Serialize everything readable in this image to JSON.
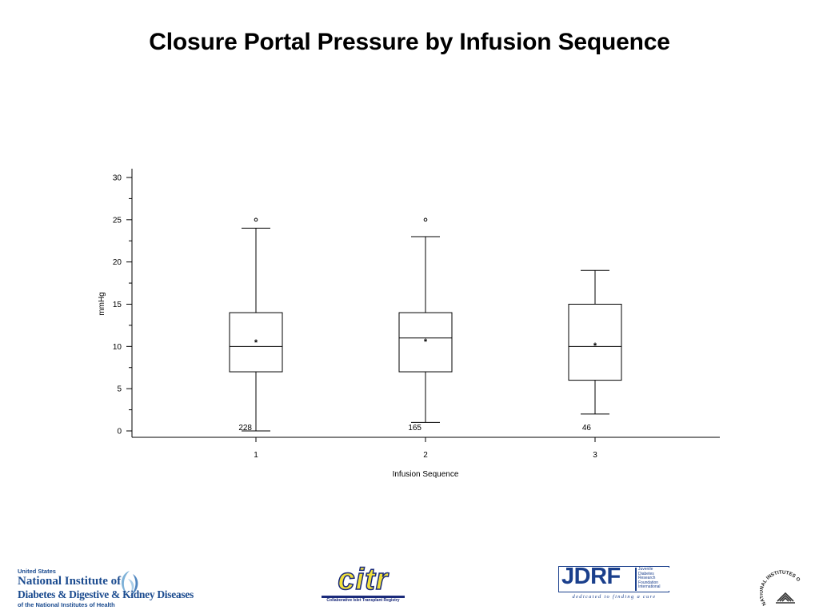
{
  "slide": {
    "title": "Closure Portal Pressure by Infusion Sequence"
  },
  "chart_data": {
    "type": "boxplot",
    "title": "Closure Portal Pressure by Infusion Sequence",
    "xlabel": "Infusion Sequence",
    "ylabel": "mmHg",
    "ylim": [
      0,
      30
    ],
    "yticks": [
      0,
      5,
      10,
      15,
      20,
      25,
      30
    ],
    "categories": [
      "1",
      "2",
      "3"
    ],
    "boxes": [
      {
        "category": "1",
        "n": "228",
        "min": 0,
        "q1": 7,
        "median": 10,
        "q3": 14,
        "max": 24,
        "mean": 10.6,
        "outliers": [
          25
        ]
      },
      {
        "category": "2",
        "n": "165",
        "min": 1,
        "q1": 7,
        "median": 11,
        "q3": 14,
        "max": 23,
        "mean": 10.7,
        "outliers": [
          25
        ]
      },
      {
        "category": "3",
        "n": "46",
        "min": 2,
        "q1": 6,
        "median": 10,
        "q3": 15,
        "max": 19,
        "mean": 10.2,
        "outliers": []
      }
    ],
    "grid": false,
    "legend": "none"
  },
  "footer": {
    "niddk": {
      "line1": "United States",
      "line2": "National Institute of",
      "line3": "Diabetes & Digestive & Kidney Diseases",
      "line4": "of the National Institutes of Health"
    },
    "citr": {
      "word": "citr",
      "sub": "Collaborative Islet Transplant Registry"
    },
    "jdrf": {
      "word": "JDRF",
      "side": [
        "Juvenile",
        "Diabetes",
        "Research",
        "Foundation",
        "International"
      ],
      "tagline": "dedicated to finding a cure"
    },
    "nih": {
      "text": "NATIONAL INSTITUTES OF HEALTH"
    }
  },
  "colors": {
    "ink": "#000000",
    "niddk_blue": "#1b4b8f",
    "citr_yellow": "#f2e13a",
    "citr_navy": "#1a2a7a",
    "jdrf_blue": "#1a3f8c"
  }
}
